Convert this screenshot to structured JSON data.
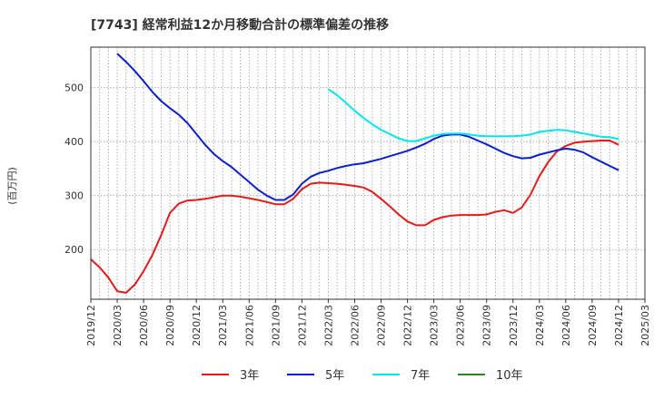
{
  "chart_data": {
    "type": "line",
    "title": "[7743]  経常利益12か月移動合計の標準偏差の推移",
    "ylabel": "(百万円)",
    "xlabel": "",
    "ylim": [
      108,
      575
    ],
    "yticks": [
      200,
      300,
      400,
      500
    ],
    "xlim": [
      "2019-12",
      "2025-03"
    ],
    "categories": [
      "2019/12",
      "2020/03",
      "2020/06",
      "2020/09",
      "2020/12",
      "2021/03",
      "2021/06",
      "2021/09",
      "2021/12",
      "2022/03",
      "2022/06",
      "2022/09",
      "2022/12",
      "2023/03",
      "2023/06",
      "2023/09",
      "2023/12",
      "2024/03",
      "2024/06",
      "2024/09",
      "2024/12",
      "2025/03"
    ],
    "grid": true,
    "series": [
      {
        "name": "3年",
        "color": "#e41a1c",
        "x": [
          "2019-12",
          "2020-01",
          "2020-02",
          "2020-03",
          "2020-04",
          "2020-05",
          "2020-06",
          "2020-07",
          "2020-08",
          "2020-09",
          "2020-10",
          "2020-11",
          "2020-12",
          "2021-01",
          "2021-02",
          "2021-03",
          "2021-04",
          "2021-05",
          "2021-06",
          "2021-07",
          "2021-08",
          "2021-09",
          "2021-10",
          "2021-11",
          "2021-12",
          "2022-01",
          "2022-02",
          "2022-03",
          "2022-04",
          "2022-05",
          "2022-06",
          "2022-07",
          "2022-08",
          "2022-09",
          "2022-10",
          "2022-11",
          "2022-12",
          "2023-01",
          "2023-02",
          "2023-03",
          "2023-04",
          "2023-05",
          "2023-06",
          "2023-07",
          "2023-08",
          "2023-09",
          "2023-10",
          "2023-11",
          "2023-12",
          "2024-01",
          "2024-02",
          "2024-03",
          "2024-04",
          "2024-05",
          "2024-06",
          "2024-07",
          "2024-08",
          "2024-09",
          "2024-10",
          "2024-11",
          "2024-12"
        ],
        "values": [
          182,
          167,
          148,
          123,
          120,
          135,
          160,
          190,
          227,
          268,
          285,
          291,
          292,
          294,
          297,
          300,
          300,
          298,
          295,
          292,
          288,
          284,
          284,
          294,
          312,
          322,
          324,
          323,
          322,
          320,
          318,
          315,
          307,
          294,
          280,
          265,
          252,
          245,
          245,
          255,
          260,
          263,
          264,
          264,
          264,
          265,
          270,
          273,
          268,
          278,
          302,
          336,
          362,
          382,
          392,
          398,
          400,
          401,
          402,
          402,
          394
        ]
      },
      {
        "name": "5年",
        "color": "#0a1fd0",
        "x": [
          "2020-03",
          "2020-04",
          "2020-05",
          "2020-06",
          "2020-07",
          "2020-08",
          "2020-09",
          "2020-10",
          "2020-11",
          "2020-12",
          "2021-01",
          "2021-02",
          "2021-03",
          "2021-04",
          "2021-05",
          "2021-06",
          "2021-07",
          "2021-08",
          "2021-09",
          "2021-10",
          "2021-11",
          "2021-12",
          "2022-01",
          "2022-02",
          "2022-03",
          "2022-04",
          "2022-05",
          "2022-06",
          "2022-07",
          "2022-08",
          "2022-09",
          "2022-10",
          "2022-11",
          "2022-12",
          "2023-01",
          "2023-02",
          "2023-03",
          "2023-04",
          "2023-05",
          "2023-06",
          "2023-07",
          "2023-08",
          "2023-09",
          "2023-10",
          "2023-11",
          "2023-12",
          "2024-01",
          "2024-02",
          "2024-03",
          "2024-04",
          "2024-05",
          "2024-06",
          "2024-07",
          "2024-08",
          "2024-09",
          "2024-10",
          "2024-11",
          "2024-12"
        ],
        "values": [
          563,
          548,
          531,
          512,
          492,
          475,
          462,
          450,
          434,
          414,
          394,
          377,
          364,
          353,
          339,
          325,
          311,
          300,
          292,
          292,
          302,
          322,
          335,
          342,
          346,
          351,
          355,
          358,
          360,
          364,
          368,
          373,
          378,
          383,
          389,
          396,
          405,
          411,
          413,
          413,
          409,
          402,
          395,
          387,
          379,
          373,
          369,
          370,
          376,
          380,
          384,
          387,
          385,
          380,
          371,
          363,
          355,
          347
        ]
      },
      {
        "name": "7年",
        "color": "#00e5ee",
        "x": [
          "2022-03",
          "2022-04",
          "2022-05",
          "2022-06",
          "2022-07",
          "2022-08",
          "2022-09",
          "2022-10",
          "2022-11",
          "2022-12",
          "2023-01",
          "2023-02",
          "2023-03",
          "2023-04",
          "2023-05",
          "2023-06",
          "2023-07",
          "2023-08",
          "2023-09",
          "2023-10",
          "2023-11",
          "2023-12",
          "2024-01",
          "2024-02",
          "2024-03",
          "2024-04",
          "2024-05",
          "2024-06",
          "2024-07",
          "2024-08",
          "2024-09",
          "2024-10",
          "2024-11",
          "2024-12"
        ],
        "values": [
          497,
          486,
          472,
          457,
          444,
          432,
          422,
          414,
          406,
          401,
          401,
          406,
          411,
          414,
          415,
          415,
          413,
          411,
          410,
          410,
          410,
          410,
          411,
          413,
          418,
          420,
          422,
          421,
          418,
          415,
          412,
          409,
          408,
          405
        ]
      },
      {
        "name": "10年",
        "color": "#228b22",
        "x": [],
        "values": []
      }
    ]
  }
}
